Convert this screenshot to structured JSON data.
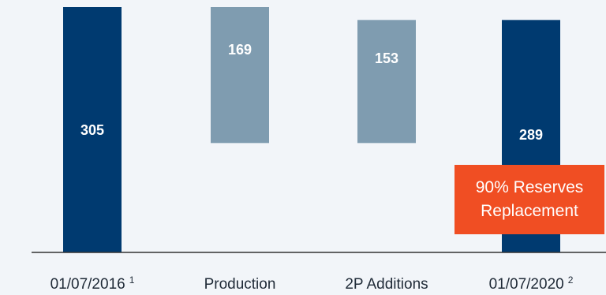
{
  "chart_data": {
    "type": "bar",
    "subtype": "waterfall",
    "title": "",
    "xlabel": "",
    "ylabel": "",
    "categories": [
      "01/07/2016",
      "Production",
      "2P Additions",
      "01/07/2020"
    ],
    "category_footnotes": [
      "1",
      "",
      "",
      "2"
    ],
    "bars": [
      {
        "category": "01/07/2016",
        "kind": "total",
        "value": 305,
        "start": 0,
        "end": 305,
        "label": "305"
      },
      {
        "category": "Production",
        "kind": "decrease",
        "value": 169,
        "start": 305,
        "end": 136,
        "label": "169"
      },
      {
        "category": "2P Additions",
        "kind": "increase",
        "value": 153,
        "start": 136,
        "end": 289,
        "label": "153"
      },
      {
        "category": "01/07/2020",
        "kind": "total",
        "value": 289,
        "start": 0,
        "end": 289,
        "label": "289"
      }
    ],
    "ylim": [
      0,
      320
    ],
    "grid": false,
    "legend": "none",
    "annotations": [
      {
        "lines": [
          "90% Reserves",
          "Replacement"
        ],
        "anchor": "01/07/2020"
      }
    ]
  },
  "colors": {
    "background": "#f2f5f9",
    "total_bar": "#003a70",
    "change_bar": "#7f9cb0",
    "total_label": "#ffffff",
    "change_label": "#ffffff",
    "axis_line": "#333333",
    "callout_bg": "#f04e23",
    "callout_text": "#ffffff"
  }
}
